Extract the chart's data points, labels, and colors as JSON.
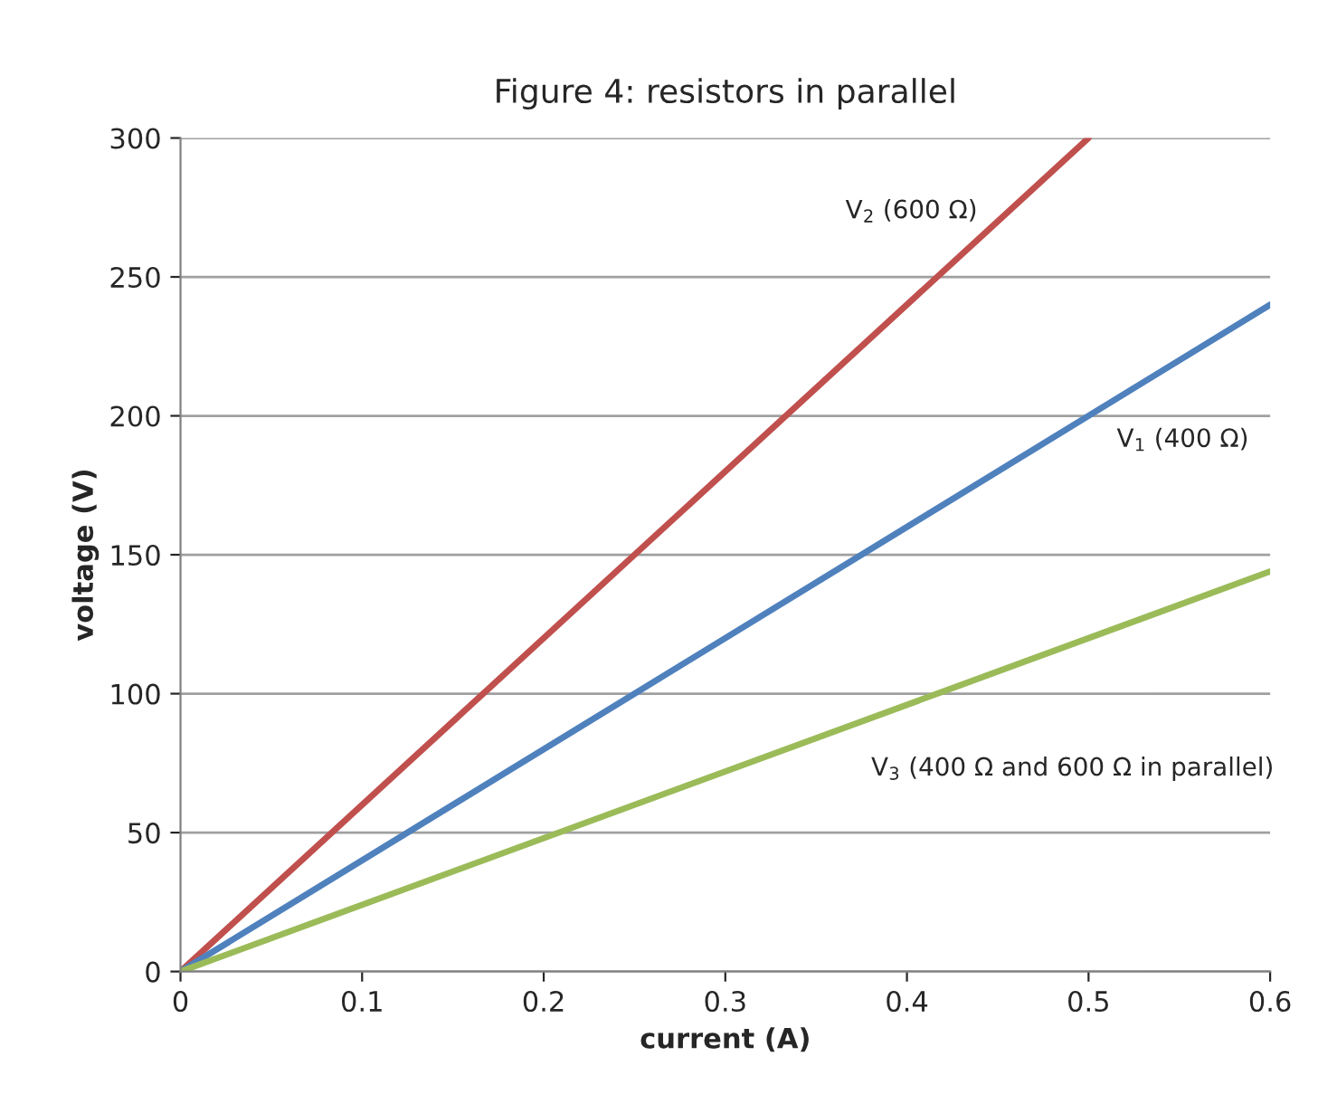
{
  "chart_data": {
    "type": "line",
    "title": "Figure 4: resistors in parallel",
    "xlabel": "current (A)",
    "ylabel": "voltage (V)",
    "xlim": [
      0,
      0.6
    ],
    "xticks": [
      {
        "value": 0,
        "label": "0"
      },
      0.1,
      0.2,
      0.3,
      0.4,
      0.5,
      0.6
    ],
    "ylim": [
      0,
      300
    ],
    "yticks": [
      0,
      50,
      100,
      150,
      200,
      250,
      300
    ],
    "grid": "y",
    "legend": false,
    "marker": "none",
    "line_style": "solid",
    "series": [
      {
        "name": "V$_{2}$ (600 Ω)",
        "color": "#c0504d",
        "x": [
          0,
          0.5
        ],
        "values": [
          0,
          300
        ]
      },
      {
        "name": "V$_{1}$ (400 Ω)",
        "color": "#4f81bd",
        "x": [
          0,
          0.6
        ],
        "values": [
          0,
          240
        ]
      },
      {
        "name": "V$_{3}$ (400 Ω and 600 Ω in parallel)",
        "color": "#9bbb59",
        "x": [
          0,
          0.6
        ],
        "values": [
          0,
          144
        ]
      }
    ]
  }
}
